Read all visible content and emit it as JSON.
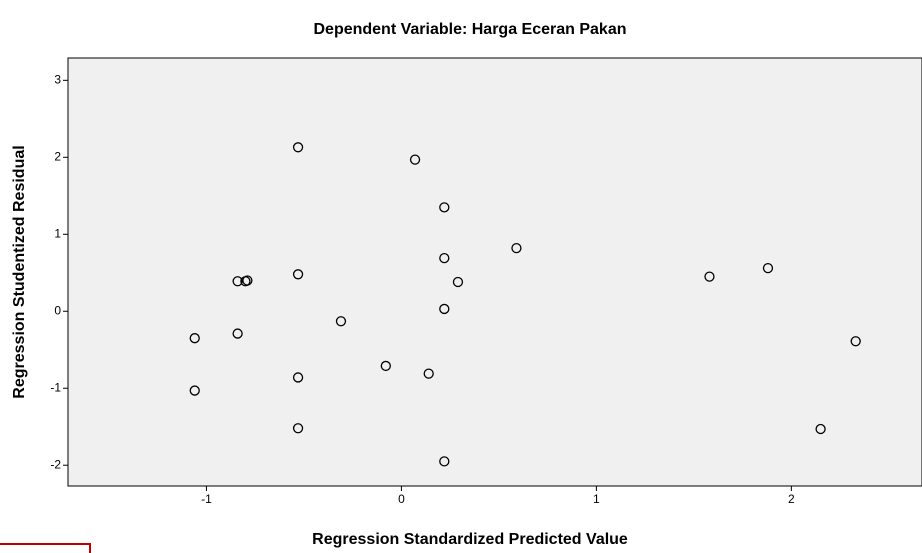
{
  "chart_data": {
    "type": "scatter",
    "title": "Dependent Variable: Harga Eceran Pakan",
    "x_label": "Regression Standardized Predicted Value",
    "y_label": "Regression Studentized Residual",
    "xlim": [
      -1.71,
      2.67
    ],
    "xticks": [
      -1,
      0,
      1,
      2
    ],
    "ylim": [
      -2.27,
      3.29
    ],
    "yticks": [
      -2,
      -1,
      0,
      1,
      2,
      3
    ],
    "color": "#000000",
    "background": "#f0f0f0",
    "x": [
      -0.53,
      0.07,
      0.22,
      0.59,
      0.22,
      -0.53,
      -0.84,
      -0.79,
      -0.8,
      0.29,
      0.22,
      -0.31,
      -1.06,
      -0.84,
      -0.08,
      0.14,
      -0.53,
      -1.06,
      -0.53,
      0.22,
      1.58,
      1.88,
      2.33,
      2.15
    ],
    "values": [
      2.13,
      1.97,
      1.35,
      0.82,
      0.69,
      0.48,
      0.39,
      0.4,
      0.39,
      0.38,
      0.03,
      -0.13,
      -0.35,
      -0.29,
      -0.71,
      -0.81,
      -0.86,
      -1.03,
      -1.52,
      -1.95,
      0.45,
      0.56,
      -0.39,
      -1.53
    ]
  }
}
